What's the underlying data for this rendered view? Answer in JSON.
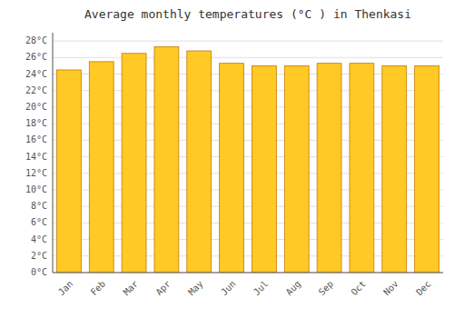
{
  "chart_data": {
    "type": "bar",
    "title": "Average monthly temperatures (°C ) in Thenkasi",
    "categories": [
      "Jan",
      "Feb",
      "Mar",
      "Apr",
      "May",
      "Jun",
      "Jul",
      "Aug",
      "Sep",
      "Oct",
      "Nov",
      "Dec"
    ],
    "values": [
      24.5,
      25.5,
      26.5,
      27.3,
      26.8,
      25.3,
      25.0,
      25.0,
      25.3,
      25.3,
      25.0,
      25.0
    ],
    "color": "#FFC926",
    "ylim": [
      0,
      29
    ],
    "yticks": [
      {
        "value": 0,
        "label": "0°C"
      },
      {
        "value": 2,
        "label": "2°C"
      },
      {
        "value": 4,
        "label": "4°C"
      },
      {
        "value": 6,
        "label": "6°C"
      },
      {
        "value": 8,
        "label": "8°C"
      },
      {
        "value": 10,
        "label": "10°C"
      },
      {
        "value": 12,
        "label": "12°C"
      },
      {
        "value": 14,
        "label": "14°C"
      },
      {
        "value": 16,
        "label": "16°C"
      },
      {
        "value": 18,
        "label": "18°C"
      },
      {
        "value": 20,
        "label": "20°C"
      },
      {
        "value": 22,
        "label": "22°C"
      },
      {
        "value": 24,
        "label": "24°C"
      },
      {
        "value": 26,
        "label": "26°C"
      },
      {
        "value": 28,
        "label": "28°C"
      }
    ],
    "grid": true
  }
}
